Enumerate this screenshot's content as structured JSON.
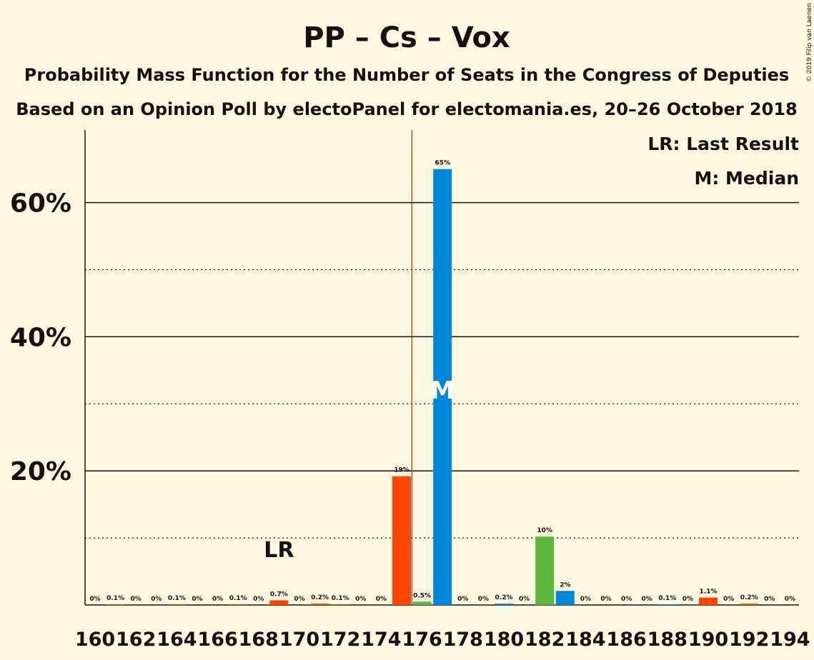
{
  "title": "PP – Cs – Vox",
  "subtitle": "Probability Mass Function for the Number of Seats in the Congress of Deputies",
  "subtitle2": "Based on an Opinion Poll by electoPanel for electomania.es, 20–26 October 2018",
  "copyright": "© 2019 Filip van Laenen",
  "legend": {
    "lr": "LR: Last Result",
    "m": "M: Median",
    "position": "top-right"
  },
  "colors": {
    "background": "#FFF8E1",
    "orange": "#FF4500",
    "green": "#5AB841",
    "blue": "#0087D7",
    "majority_line": "#B00000",
    "text": "#1a0f0f"
  },
  "chart_data": {
    "type": "bar",
    "ylim": [
      0,
      70
    ],
    "yticks": [
      {
        "value": 20,
        "label": "20%"
      },
      {
        "value": 40,
        "label": "40%"
      },
      {
        "value": 60,
        "label": "60%"
      }
    ],
    "minor_gridlines": [
      10,
      30,
      50
    ],
    "majority_threshold": 175.5,
    "last_result": {
      "seats": 169,
      "label": "LR"
    },
    "median": {
      "seats": 177,
      "label": "M"
    },
    "xticks": [
      "160",
      "162",
      "164",
      "166",
      "168",
      "170",
      "172",
      "174",
      "176",
      "178",
      "180",
      "182",
      "184",
      "186",
      "188",
      "190",
      "192",
      "194"
    ],
    "bars": [
      {
        "seats": 160,
        "value": 0,
        "label": "0%",
        "color": "orange"
      },
      {
        "seats": 161,
        "value": 0.1,
        "label": "0.1%",
        "color": "orange"
      },
      {
        "seats": 162,
        "value": 0,
        "label": "0%",
        "color": "orange"
      },
      {
        "seats": 163,
        "value": 0,
        "label": "0%",
        "color": "orange"
      },
      {
        "seats": 164,
        "value": 0.1,
        "label": "0.1%",
        "color": "orange"
      },
      {
        "seats": 165,
        "value": 0,
        "label": "0%",
        "color": "orange"
      },
      {
        "seats": 166,
        "value": 0,
        "label": "0%",
        "color": "orange"
      },
      {
        "seats": 167,
        "value": 0.1,
        "label": "0.1%",
        "color": "orange"
      },
      {
        "seats": 168,
        "value": 0,
        "label": "0%",
        "color": "orange"
      },
      {
        "seats": 169,
        "value": 0.7,
        "label": "0.7%",
        "color": "orange"
      },
      {
        "seats": 170,
        "value": 0,
        "label": "0%",
        "color": "orange"
      },
      {
        "seats": 171,
        "value": 0.2,
        "label": "0.2%",
        "color": "orange"
      },
      {
        "seats": 172,
        "value": 0.1,
        "label": "0.1%",
        "color": "orange"
      },
      {
        "seats": 173,
        "value": 0,
        "label": "0%",
        "color": "orange"
      },
      {
        "seats": 174,
        "value": 0,
        "label": "0%",
        "color": "orange"
      },
      {
        "seats": 175,
        "value": 19.2,
        "label": "19%",
        "color": "orange"
      },
      {
        "seats": 176,
        "value": 0.5,
        "label": "0.5%",
        "color": "green"
      },
      {
        "seats": 177,
        "value": 65,
        "label": "65%",
        "color": "blue"
      },
      {
        "seats": 178,
        "value": 0,
        "label": "0%",
        "color": "blue"
      },
      {
        "seats": 179,
        "value": 0,
        "label": "0%",
        "color": "blue"
      },
      {
        "seats": 180,
        "value": 0.2,
        "label": "0.2%",
        "color": "blue"
      },
      {
        "seats": 181,
        "value": 0,
        "label": "0%",
        "color": "blue"
      },
      {
        "seats": 182,
        "value": 10.2,
        "label": "10%",
        "color": "green"
      },
      {
        "seats": 183,
        "value": 2.1,
        "label": "2%",
        "color": "blue"
      },
      {
        "seats": 184,
        "value": 0,
        "label": "0%",
        "color": "blue"
      },
      {
        "seats": 185,
        "value": 0,
        "label": "0%",
        "color": "blue"
      },
      {
        "seats": 186,
        "value": 0,
        "label": "0%",
        "color": "blue"
      },
      {
        "seats": 187,
        "value": 0,
        "label": "0%",
        "color": "blue"
      },
      {
        "seats": 188,
        "value": 0.1,
        "label": "0.1%",
        "color": "blue"
      },
      {
        "seats": 189,
        "value": 0,
        "label": "0%",
        "color": "blue"
      },
      {
        "seats": 190,
        "value": 1.1,
        "label": "1.1%",
        "color": "orange"
      },
      {
        "seats": 191,
        "value": 0,
        "label": "0%",
        "color": "orange"
      },
      {
        "seats": 192,
        "value": 0.2,
        "label": "0.2%",
        "color": "orange"
      },
      {
        "seats": 193,
        "value": 0,
        "label": "0%",
        "color": "orange"
      },
      {
        "seats": 194,
        "value": 0,
        "label": "0%",
        "color": "orange"
      }
    ]
  }
}
